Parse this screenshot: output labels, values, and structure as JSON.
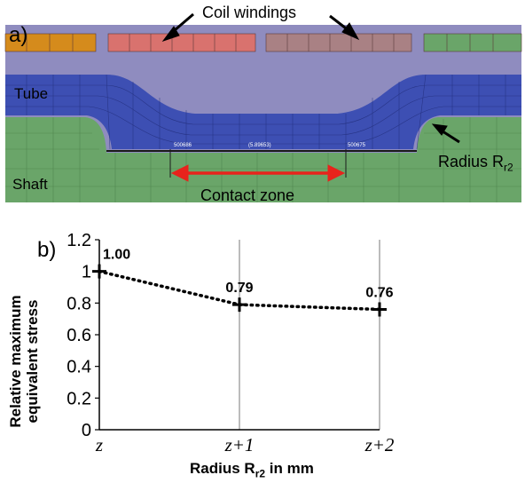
{
  "panel_a": {
    "letter": "a)",
    "labels": {
      "coil_windings": "Coil windings",
      "tube": "Tube",
      "shaft": "Shaft",
      "radius": "Radius R",
      "radius_sub": "r2",
      "contact_zone": "Contact zone"
    },
    "mesh_values": {
      "left": "500686",
      "middle": "(5.89653)",
      "right": "500675"
    },
    "colors": {
      "coil_orange": "#d58b1c",
      "coil_red": "#d9726e",
      "coil_mauve": "#a98184",
      "coil_green": "#6aa569",
      "air": "#8f8cbf",
      "tube": "#3d4fb3",
      "shaft": "#6aa569",
      "arrow_red": "#e8231c"
    }
  },
  "panel_b": {
    "letter": "b)"
  },
  "chart_data": {
    "type": "line",
    "categories": [
      "z",
      "z+1",
      "z+2"
    ],
    "values": [
      1.0,
      0.79,
      0.76
    ],
    "data_labels": [
      "1.00",
      "0.79",
      "0.76"
    ],
    "xlabel_main": "Radius R",
    "xlabel_sub": "r2",
    "xlabel_unit": " in mm",
    "ylabel_lines": [
      "Relative maximum",
      "equivalent stress"
    ],
    "ylim": [
      0,
      1.2
    ],
    "yticks": [
      "0",
      "0.2",
      "0.4",
      "0.6",
      "0.8",
      "1",
      "1.2"
    ],
    "grid": "vertical",
    "line_style": "dotted",
    "marker": "plus"
  }
}
